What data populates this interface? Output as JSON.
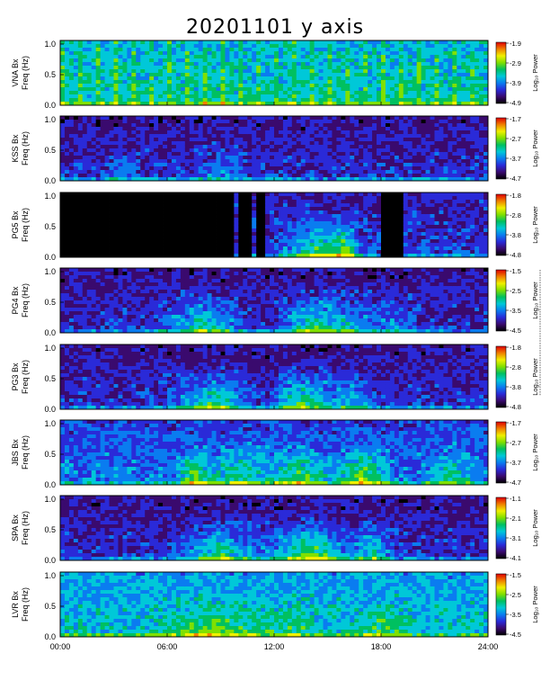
{
  "chart_data": {
    "type": "heatmap",
    "title": "20201101 y axis",
    "xlim": [
      0,
      24
    ],
    "x_ticks": [
      "00:00",
      "06:00",
      "12:00",
      "18:00",
      "24:00"
    ],
    "freq_ylim": [
      0,
      1.0
    ],
    "y_ticks": [
      "0.0",
      "0.5",
      "1.0"
    ],
    "colorbar_label": "Log₁₀ Power",
    "colormap": [
      "#000000",
      "#3a0a6e",
      "#2a2ad8",
      "#0a7cf0",
      "#00c8d8",
      "#00c060",
      "#80e000",
      "#f0f000",
      "#f08000",
      "#e00000"
    ],
    "panels": [
      {
        "station": "VNA Bx",
        "ylabel": "Freq (Hz)",
        "cb_ticks": [
          "-1.9",
          "-2.9",
          "-3.9",
          "-4.9"
        ],
        "background": "noisy-bright"
      },
      {
        "station": "KSS Bx",
        "ylabel": "Freq (Hz)",
        "cb_ticks": [
          "-1.7",
          "-2.7",
          "-3.7",
          "-4.7"
        ],
        "background": "dark-purple"
      },
      {
        "station": "PG5 Bx",
        "ylabel": "Freq (Hz)",
        "cb_ticks": [
          "-1.8",
          "-2.8",
          "-3.8",
          "-4.8"
        ],
        "background": "gaps"
      },
      {
        "station": "PG4 Bx",
        "ylabel": "Freq (Hz)",
        "cb_ticks": [
          "-1.5",
          "-2.5",
          "-3.5",
          "-4.5"
        ],
        "background": "dark-purple"
      },
      {
        "station": "PG3 Bx",
        "ylabel": "Freq (Hz)",
        "cb_ticks": [
          "-1.8",
          "-2.8",
          "-3.8",
          "-4.8"
        ],
        "background": "dark-purple"
      },
      {
        "station": "JBS Bx",
        "ylabel": "Freq (Hz)",
        "cb_ticks": [
          "-1.7",
          "-2.7",
          "-3.7",
          "-4.7"
        ],
        "background": "medium-blue"
      },
      {
        "station": "SPA Bx",
        "ylabel": "Freq (Hz)",
        "cb_ticks": [
          "-1.1",
          "-2.1",
          "-3.1",
          "-4.1"
        ],
        "background": "dark-purple"
      },
      {
        "station": "LVR Bx",
        "ylabel": "Freq (Hz)",
        "cb_ticks": [
          "-1.5",
          "-2.5",
          "-3.5",
          "-4.5"
        ],
        "background": "bright-blue"
      }
    ]
  }
}
